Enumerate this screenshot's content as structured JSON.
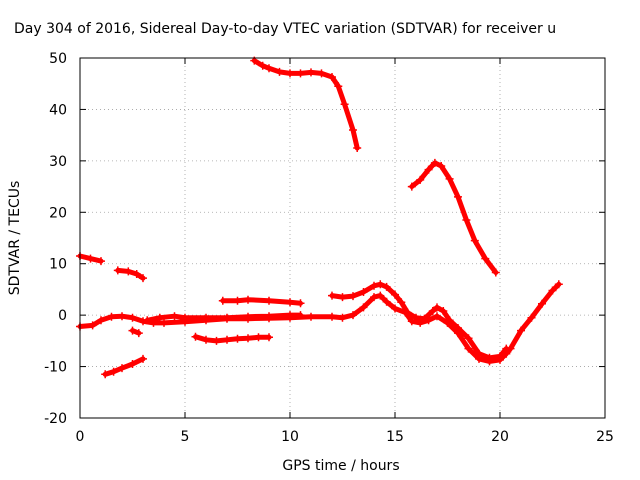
{
  "chart_data": {
    "type": "line",
    "title": "Day 304 of 2016, Sidereal Day-to-day VTEC variation (SDTVAR) for receiver u",
    "xlabel": "GPS time / hours",
    "ylabel": "SDTVAR / TECUs",
    "xlim": [
      0,
      25
    ],
    "ylim": [
      -20,
      50
    ],
    "xticks": [
      0,
      5,
      10,
      15,
      20,
      25
    ],
    "yticks": [
      -20,
      -10,
      0,
      10,
      20,
      30,
      40,
      50
    ],
    "grid": true,
    "color": "#ff0000",
    "series": [
      {
        "name": "arc-1",
        "points": [
          [
            0.0,
            11.5
          ],
          [
            0.5,
            11.0
          ],
          [
            1.0,
            10.5
          ]
        ]
      },
      {
        "name": "arc-2",
        "points": [
          [
            1.8,
            8.7
          ],
          [
            2.3,
            8.5
          ],
          [
            2.7,
            8.0
          ],
          [
            3.0,
            7.2
          ]
        ]
      },
      {
        "name": "arc-3",
        "points": [
          [
            0.0,
            -2.2
          ],
          [
            0.6,
            -2.0
          ],
          [
            1.0,
            -1.0
          ],
          [
            1.5,
            -0.3
          ],
          [
            2.0,
            -0.2
          ],
          [
            2.5,
            -0.5
          ],
          [
            3.0,
            -1.2
          ],
          [
            3.5,
            -1.5
          ],
          [
            4.0,
            -1.5
          ],
          [
            5.0,
            -1.3
          ],
          [
            6.0,
            -1.0
          ],
          [
            7.0,
            -0.7
          ],
          [
            8.0,
            -0.7
          ],
          [
            9.0,
            -0.6
          ],
          [
            10.0,
            -0.5
          ],
          [
            11.0,
            -0.3
          ],
          [
            12.0,
            -0.3
          ],
          [
            12.5,
            -0.5
          ],
          [
            13.0,
            0.0
          ],
          [
            13.5,
            1.5
          ],
          [
            14.0,
            3.5
          ],
          [
            14.3,
            3.8
          ],
          [
            14.6,
            2.6
          ],
          [
            15.0,
            1.3
          ],
          [
            15.5,
            0.5
          ],
          [
            15.8,
            -1.2
          ],
          [
            16.2,
            -1.5
          ],
          [
            16.6,
            -1.0
          ],
          [
            17.0,
            -0.2
          ],
          [
            17.5,
            -1.5
          ],
          [
            18.0,
            -3.5
          ],
          [
            18.5,
            -6.5
          ],
          [
            19.0,
            -8.5
          ],
          [
            19.5,
            -9.0
          ],
          [
            20.0,
            -8.7
          ],
          [
            20.3,
            -7.5
          ],
          [
            20.5,
            -6.5
          ],
          [
            21.0,
            -3.0
          ],
          [
            21.5,
            -0.5
          ],
          [
            22.0,
            2.2
          ],
          [
            22.5,
            4.8
          ],
          [
            22.8,
            6.0
          ]
        ]
      },
      {
        "name": "arc-4",
        "points": [
          [
            2.5,
            -3.0
          ],
          [
            2.8,
            -3.5
          ]
        ]
      },
      {
        "name": "arc-5",
        "points": [
          [
            1.2,
            -11.5
          ],
          [
            1.6,
            -11.0
          ],
          [
            2.0,
            -10.3
          ],
          [
            2.5,
            -9.5
          ],
          [
            3.0,
            -8.5
          ]
        ]
      },
      {
        "name": "arc-6",
        "points": [
          [
            3.2,
            -1.0
          ],
          [
            3.8,
            -0.5
          ],
          [
            4.5,
            -0.2
          ],
          [
            5.0,
            -0.5
          ],
          [
            6.0,
            -0.5
          ],
          [
            7.0,
            -0.5
          ],
          [
            8.0,
            -0.3
          ],
          [
            9.0,
            -0.2
          ],
          [
            10.0,
            0.0
          ],
          [
            10.5,
            0.0
          ]
        ]
      },
      {
        "name": "arc-7",
        "points": [
          [
            5.5,
            -4.2
          ],
          [
            6.0,
            -4.8
          ],
          [
            6.5,
            -5.0
          ],
          [
            7.0,
            -4.8
          ],
          [
            7.5,
            -4.6
          ],
          [
            8.0,
            -4.5
          ],
          [
            8.5,
            -4.3
          ],
          [
            9.0,
            -4.3
          ]
        ]
      },
      {
        "name": "arc-8",
        "points": [
          [
            6.8,
            2.8
          ],
          [
            7.5,
            2.8
          ],
          [
            8.0,
            3.0
          ],
          [
            9.0,
            2.8
          ],
          [
            10.0,
            2.5
          ],
          [
            10.5,
            2.3
          ]
        ]
      },
      {
        "name": "arc-9",
        "points": [
          [
            12.0,
            3.8
          ],
          [
            12.5,
            3.5
          ],
          [
            13.0,
            3.7
          ],
          [
            13.5,
            4.5
          ],
          [
            14.0,
            5.7
          ],
          [
            14.3,
            6.0
          ],
          [
            14.6,
            5.5
          ],
          [
            15.0,
            4.0
          ],
          [
            15.3,
            2.5
          ],
          [
            15.6,
            0.5
          ],
          [
            16.0,
            -0.5
          ],
          [
            16.4,
            -0.7
          ],
          [
            16.8,
            0.8
          ],
          [
            17.0,
            1.5
          ],
          [
            17.3,
            0.8
          ],
          [
            17.6,
            -1.0
          ],
          [
            18.0,
            -2.5
          ],
          [
            18.5,
            -4.5
          ],
          [
            19.0,
            -7.5
          ],
          [
            19.5,
            -8.3
          ],
          [
            20.0,
            -8.0
          ],
          [
            20.3,
            -6.5
          ]
        ]
      },
      {
        "name": "arc-10",
        "points": [
          [
            8.3,
            49.5
          ],
          [
            8.7,
            48.5
          ],
          [
            9.0,
            48.0
          ],
          [
            9.5,
            47.3
          ],
          [
            10.0,
            47.0
          ],
          [
            10.5,
            47.0
          ],
          [
            11.0,
            47.2
          ],
          [
            11.5,
            47.0
          ],
          [
            12.0,
            46.3
          ],
          [
            12.3,
            44.5
          ],
          [
            12.6,
            41.0
          ],
          [
            13.0,
            36.0
          ],
          [
            13.2,
            32.5
          ]
        ]
      },
      {
        "name": "arc-11",
        "points": [
          [
            15.8,
            25.0
          ],
          [
            16.2,
            26.3
          ],
          [
            16.6,
            28.3
          ],
          [
            16.9,
            29.6
          ],
          [
            17.2,
            29.0
          ],
          [
            17.6,
            26.5
          ],
          [
            18.0,
            23.0
          ],
          [
            18.4,
            18.5
          ],
          [
            18.8,
            14.5
          ],
          [
            19.3,
            11.0
          ],
          [
            19.8,
            8.3
          ]
        ]
      }
    ]
  }
}
